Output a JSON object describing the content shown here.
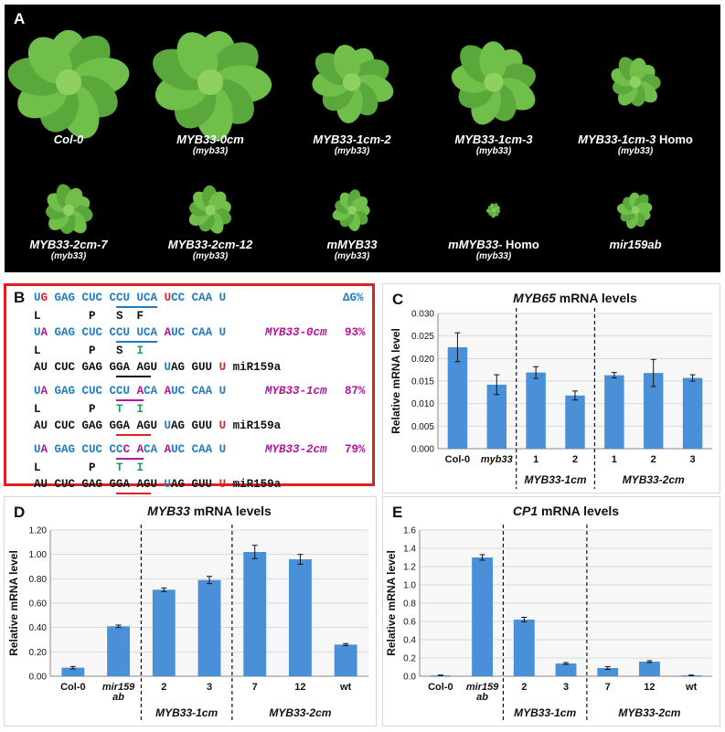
{
  "panelA": {
    "letter": "A",
    "plants": [
      {
        "name": "Col-0",
        "sub": "",
        "size": 1.0
      },
      {
        "name": "MYB33-0cm",
        "sub": "(myb33)",
        "size": 1.0
      },
      {
        "name": "MYB33-1cm-2",
        "sub": "(myb33)",
        "size": 0.7
      },
      {
        "name": "MYB33-1cm-3",
        "sub": "(myb33)",
        "size": 0.75
      },
      {
        "name": "MYB33-1cm-3",
        "extra": "Homo",
        "sub": "(myb33)",
        "size": 0.45
      },
      {
        "name": "MYB33-2cm-7",
        "sub": "(myb33)",
        "size": 0.7
      },
      {
        "name": "MYB33-2cm-12",
        "sub": "(myb33)",
        "size": 0.65
      },
      {
        "name": "mMYB33",
        "sub": "(myb33)",
        "size": 0.55
      },
      {
        "name": "mMYB33-",
        "extra": "Homo",
        "sub": "(myb33)",
        "size": 0.2
      },
      {
        "name": "mir159ab",
        "sub": "",
        "size": 0.5
      }
    ]
  },
  "panelB": {
    "letter": "B",
    "dg_header": "ΔG%",
    "l1_u": "U",
    "l1_g": "G",
    "l1_rest": " GAG CUC CCU UCA ",
    "l1_u2": "U",
    "l1_end": "CC CAA U",
    "aa1": "L       P   S  F",
    "blocks": [
      {
        "label": "MYB33-0cm",
        "pct": "93%",
        "aa_black": "L       P   S",
        "aa_green": "I"
      },
      {
        "label": "MYB33-1cm",
        "pct": "87%",
        "aa_black": "L       P",
        "aa_green": "T  I"
      },
      {
        "label": "MYB33-2cm",
        "pct": "79%",
        "aa_black": "L       P",
        "aa_green": "T  I"
      }
    ],
    "mirna_label": "miR159a"
  },
  "colors": {
    "bar": "#4a90d9",
    "grid": "#d9d9d9"
  },
  "chart_data": [
    {
      "panel": "C",
      "type": "bar",
      "title": "MYB65",
      "title_suffix": "mRNA levels",
      "ylabel": "Relative mRNA level",
      "ylim": [
        0,
        0.03
      ],
      "yticks": [
        "0.000",
        "0.005",
        "0.010",
        "0.015",
        "0.020",
        "0.025",
        "0.030"
      ],
      "categories": [
        "Col-0",
        "myb33",
        "1",
        "2",
        "1",
        "2",
        "3"
      ],
      "values": [
        0.0225,
        0.0142,
        0.0169,
        0.0118,
        0.0163,
        0.0168,
        0.0157
      ],
      "errors": [
        0.0032,
        0.0022,
        0.0013,
        0.001,
        0.0006,
        0.003,
        0.0007
      ],
      "groups": [
        {
          "label": "MYB33-1cm",
          "from": 2,
          "to": 3
        },
        {
          "label": "MYB33-2cm",
          "from": 4,
          "to": 6
        }
      ],
      "grid": true
    },
    {
      "panel": "D",
      "type": "bar",
      "title": "MYB33",
      "title_suffix": "mRNA levels",
      "ylabel": "Relative mRNA level",
      "ylim": [
        0,
        1.2
      ],
      "yticks": [
        "0.00",
        "0.20",
        "0.40",
        "0.60",
        "0.80",
        "1.00",
        "1.20"
      ],
      "categories": [
        "Col-0",
        "mir159 ab",
        "2",
        "3",
        "7",
        "12",
        "wt"
      ],
      "values": [
        0.07,
        0.41,
        0.71,
        0.79,
        1.02,
        0.96,
        0.26
      ],
      "errors": [
        0.01,
        0.01,
        0.015,
        0.03,
        0.055,
        0.04,
        0.008
      ],
      "groups": [
        {
          "label": "MYB33-1cm",
          "from": 2,
          "to": 3
        },
        {
          "label": "MYB33-2cm",
          "from": 4,
          "to": 6
        }
      ],
      "grid": true
    },
    {
      "panel": "E",
      "type": "bar",
      "title": "CP1",
      "title_suffix": "mRNA levels",
      "ylabel": "Relative mRNA level",
      "ylim": [
        0,
        1.6
      ],
      "yticks": [
        "0.0",
        "0.2",
        "0.4",
        "0.6",
        "0.8",
        "1.0",
        "1.2",
        "1.4",
        "1.6"
      ],
      "categories": [
        "Col-0",
        "mir159 ab",
        "2",
        "3",
        "7",
        "12",
        "wt"
      ],
      "values": [
        0.01,
        1.3,
        0.62,
        0.14,
        0.09,
        0.16,
        0.01
      ],
      "errors": [
        0.003,
        0.03,
        0.025,
        0.01,
        0.015,
        0.01,
        0.003
      ],
      "groups": [
        {
          "label": "MYB33-1cm",
          "from": 2,
          "to": 3
        },
        {
          "label": "MYB33-2cm",
          "from": 4,
          "to": 6
        }
      ],
      "grid": true
    }
  ]
}
